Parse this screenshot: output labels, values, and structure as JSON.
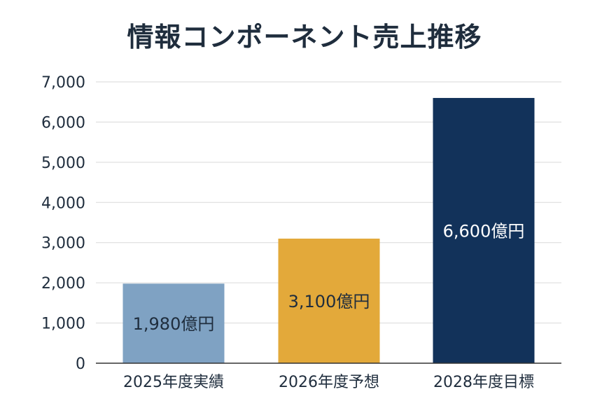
{
  "chart_data": {
    "type": "bar",
    "title": "情報コンポーネント売上推移",
    "xlabel": "",
    "ylabel": "",
    "categories": [
      "2025年度実績",
      "2026年度予想",
      "2028年度目標"
    ],
    "values": [
      1980,
      3100,
      6600
    ],
    "data_labels": [
      "1,980億円",
      "3,100億円",
      "6,600億円"
    ],
    "ylim": [
      0,
      7000
    ],
    "yticks": [
      0,
      1000,
      2000,
      3000,
      4000,
      5000,
      6000,
      7000
    ],
    "ytick_labels": [
      "0",
      "1,000",
      "2,000",
      "3,000",
      "4,000",
      "5,000",
      "6,000",
      "7,000"
    ],
    "grid": true,
    "bar_colors": [
      "#7fa2c3",
      "#e3a93a",
      "#12325a"
    ],
    "data_label_colors": [
      "#1f2d3d",
      "#1f2d3d",
      "#ffffff"
    ],
    "gridline_color": "#d9d9d9",
    "axis_color": "#333333"
  }
}
